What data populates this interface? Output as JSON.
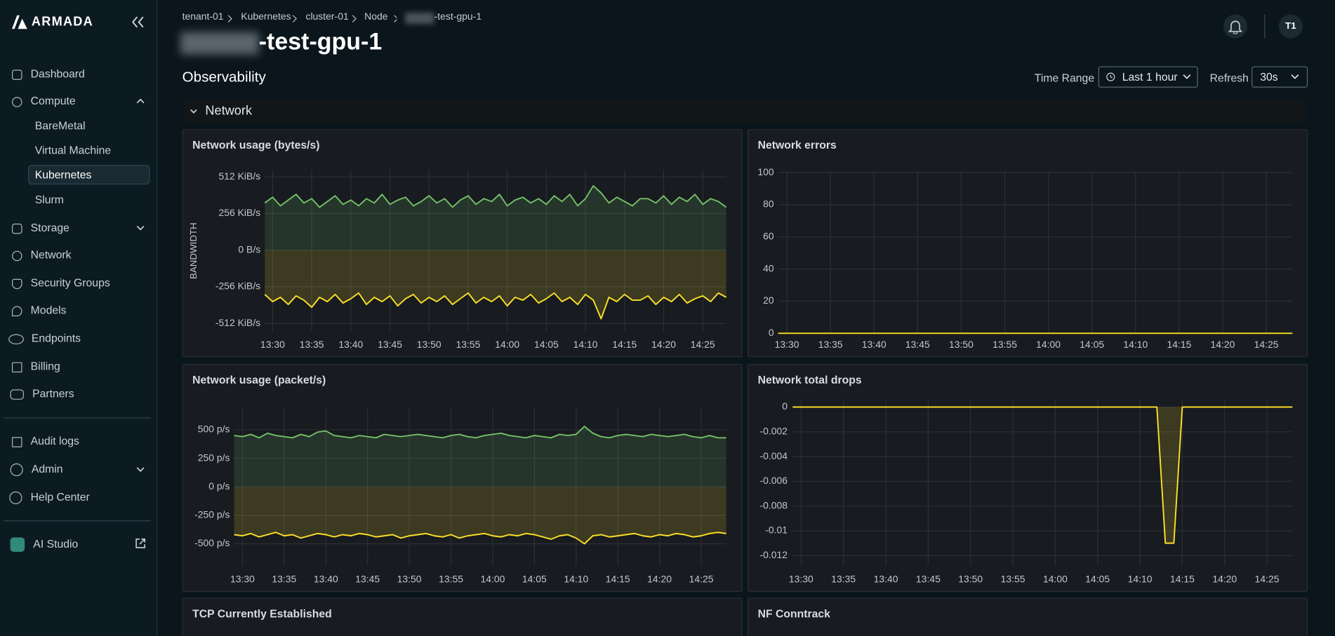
{
  "sidebar": {
    "logo": "ARMADA",
    "nav": [
      {
        "label": "Dashboard"
      },
      {
        "label": "Compute",
        "children": [
          "BareMetal",
          "Virtual Machine",
          "Kubernetes",
          "Slurm"
        ]
      },
      {
        "label": "Storage"
      },
      {
        "label": "Network"
      },
      {
        "label": "Security Groups"
      },
      {
        "label": "Models"
      },
      {
        "label": "Endpoints"
      },
      {
        "label": "Billing"
      },
      {
        "label": "Partners"
      },
      {
        "label": "Audit logs"
      },
      {
        "label": "Admin"
      },
      {
        "label": "Help Center"
      },
      {
        "label": "AI Studio"
      }
    ]
  },
  "header": {
    "breadcrumb": [
      "tenant-01",
      "Kubernetes",
      "cluster-01",
      "Node",
      "-test-gpu-1"
    ],
    "title": "-test-gpu-1",
    "avatar": "T1"
  },
  "toolbar": {
    "heading": "Observability",
    "time_range_label": "Time Range",
    "time_range": "Last 1 hour",
    "refresh_label": "Refresh",
    "refresh": "30s"
  },
  "section": "Network",
  "chart_data": [
    {
      "type": "area",
      "title": "Network usage (bytes/s)",
      "y_label": "BANDWIDTH",
      "grid": true,
      "x": [
        "13:29",
        "13:30",
        "13:31",
        "13:32",
        "13:33",
        "13:34",
        "13:35",
        "13:36",
        "13:37",
        "13:38",
        "13:39",
        "13:40",
        "13:41",
        "13:42",
        "13:43",
        "13:44",
        "13:45",
        "13:46",
        "13:47",
        "13:48",
        "13:49",
        "13:50",
        "13:51",
        "13:52",
        "13:53",
        "13:54",
        "13:55",
        "13:56",
        "13:57",
        "13:58",
        "13:59",
        "14:00",
        "14:01",
        "14:02",
        "14:03",
        "14:04",
        "14:05",
        "14:06",
        "14:07",
        "14:08",
        "14:09",
        "14:10",
        "14:11",
        "14:12",
        "14:13",
        "14:14",
        "14:15",
        "14:16",
        "14:17",
        "14:18",
        "14:19",
        "14:20",
        "14:21",
        "14:22",
        "14:23",
        "14:24",
        "14:25",
        "14:26",
        "14:27",
        "14:28"
      ],
      "xlim": [
        "13:29",
        "14:28"
      ],
      "xticks": [
        "13:30",
        "13:35",
        "13:40",
        "13:45",
        "13:50",
        "13:55",
        "14:00",
        "14:05",
        "14:10",
        "14:15",
        "14:20",
        "14:25"
      ],
      "ylim": [
        -570,
        560
      ],
      "yticks": [
        {
          "value": 512,
          "label": "512 KiB/s"
        },
        {
          "value": 256,
          "label": "256 KiB/s"
        },
        {
          "value": 0,
          "label": "0 B/s"
        },
        {
          "value": -256,
          "label": "-256 KiB/s"
        },
        {
          "value": -512,
          "label": "-512 KiB/s"
        }
      ],
      "series": [
        {
          "color": "#73bf69",
          "values": [
            330,
            370,
            310,
            350,
            390,
            330,
            360,
            300,
            340,
            380,
            320,
            350,
            310,
            360,
            330,
            390,
            320,
            350,
            370,
            310,
            340,
            380,
            330,
            360,
            300,
            350,
            380,
            320,
            360,
            340,
            390,
            310,
            350,
            370,
            330,
            360,
            320,
            380,
            340,
            390,
            310,
            360,
            450,
            400,
            330,
            370,
            340,
            310,
            360,
            360,
            330,
            380,
            320,
            370,
            340,
            390,
            320,
            360,
            340,
            300
          ]
        },
        {
          "color": "#fade2a",
          "values": [
            -310,
            -360,
            -330,
            -380,
            -320,
            -350,
            -400,
            -330,
            -360,
            -310,
            -370,
            -340,
            -300,
            -380,
            -330,
            -360,
            -320,
            -390,
            -340,
            -310,
            -370,
            -330,
            -360,
            -320,
            -380,
            -340,
            -300,
            -370,
            -330,
            -360,
            -320,
            -390,
            -330,
            -350,
            -310,
            -370,
            -340,
            -300,
            -360,
            -330,
            -380,
            -310,
            -350,
            -480,
            -330,
            -360,
            -310,
            -350,
            -350,
            -320,
            -380,
            -330,
            -360,
            -310,
            -370,
            -340,
            -320,
            -360,
            -300,
            -330
          ]
        }
      ]
    },
    {
      "type": "line",
      "title": "Network errors",
      "grid": true,
      "x": [
        "13:29",
        "14:28"
      ],
      "xlim": [
        "13:29",
        "14:28"
      ],
      "xticks": [
        "13:30",
        "13:35",
        "13:40",
        "13:45",
        "13:50",
        "13:55",
        "14:00",
        "14:05",
        "14:10",
        "14:15",
        "14:20",
        "14:25"
      ],
      "ylim": [
        0,
        100
      ],
      "yticks": [
        0,
        20,
        40,
        60,
        80,
        100
      ],
      "series": [
        {
          "color": "#fade2a",
          "values": [
            0,
            0
          ]
        }
      ]
    },
    {
      "type": "area",
      "title": "Network usage (packet/s)",
      "grid": true,
      "x": [
        "13:29",
        "13:30",
        "13:31",
        "13:32",
        "13:33",
        "13:34",
        "13:35",
        "13:36",
        "13:37",
        "13:38",
        "13:39",
        "13:40",
        "13:41",
        "13:42",
        "13:43",
        "13:44",
        "13:45",
        "13:46",
        "13:47",
        "13:48",
        "13:49",
        "13:50",
        "13:51",
        "13:52",
        "13:53",
        "13:54",
        "13:55",
        "13:56",
        "13:57",
        "13:58",
        "13:59",
        "14:00",
        "14:01",
        "14:02",
        "14:03",
        "14:04",
        "14:05",
        "14:06",
        "14:07",
        "14:08",
        "14:09",
        "14:10",
        "14:11",
        "14:12",
        "14:13",
        "14:14",
        "14:15",
        "14:16",
        "14:17",
        "14:18",
        "14:19",
        "14:20",
        "14:21",
        "14:22",
        "14:23",
        "14:24",
        "14:25",
        "14:26",
        "14:27",
        "14:28"
      ],
      "xlim": [
        "13:29",
        "14:28"
      ],
      "xticks": [
        "13:30",
        "13:35",
        "13:40",
        "13:45",
        "13:50",
        "13:55",
        "14:00",
        "14:05",
        "14:10",
        "14:15",
        "14:20",
        "14:25"
      ],
      "ylim": [
        -690,
        690
      ],
      "yticks": [
        {
          "value": 500,
          "label": "500 p/s"
        },
        {
          "value": 250,
          "label": "250 p/s"
        },
        {
          "value": 0,
          "label": "0 p/s"
        },
        {
          "value": -250,
          "label": "-250 p/s"
        },
        {
          "value": -500,
          "label": "-500 p/s"
        }
      ],
      "series": [
        {
          "color": "#73bf69",
          "values": [
            450,
            440,
            460,
            430,
            470,
            450,
            440,
            430,
            460,
            440,
            480,
            490,
            450,
            440,
            430,
            450,
            440,
            430,
            460,
            450,
            440,
            450,
            460,
            450,
            440,
            430,
            450,
            460,
            440,
            430,
            450,
            460,
            470,
            450,
            440,
            430,
            450,
            440,
            430,
            460,
            450,
            460,
            530,
            470,
            440,
            430,
            450,
            460,
            450,
            440,
            460,
            450,
            440,
            450,
            460,
            440,
            430,
            450,
            430,
            430
          ]
        },
        {
          "color": "#fade2a",
          "values": [
            -420,
            -430,
            -410,
            -440,
            -420,
            -400,
            -430,
            -420,
            -450,
            -430,
            -410,
            -420,
            -440,
            -420,
            -430,
            -410,
            -420,
            -440,
            -430,
            -420,
            -450,
            -430,
            -420,
            -410,
            -430,
            -440,
            -420,
            -450,
            -430,
            -420,
            -410,
            -430,
            -440,
            -420,
            -430,
            -410,
            -420,
            -440,
            -460,
            -430,
            -420,
            -450,
            -500,
            -430,
            -420,
            -440,
            -430,
            -420,
            -410,
            -430,
            -440,
            -420,
            -430,
            -410,
            -420,
            -440,
            -430,
            -410,
            -400,
            -410
          ]
        }
      ]
    },
    {
      "type": "area",
      "title": "Network total drops",
      "grid": true,
      "x": [
        "13:29",
        "14:12",
        "14:13",
        "14:14",
        "14:15",
        "14:28"
      ],
      "xlim": [
        "13:29",
        "14:28"
      ],
      "xticks": [
        "13:30",
        "13:35",
        "13:40",
        "13:45",
        "13:50",
        "13:55",
        "14:00",
        "14:05",
        "14:10",
        "14:15",
        "14:20",
        "14:25"
      ],
      "ylim": [
        -0.0128,
        0.0006
      ],
      "yticks": [
        0,
        -0.002,
        -0.004,
        -0.006,
        -0.008,
        -0.01,
        -0.012
      ],
      "series": [
        {
          "color": "#fade2a",
          "values": [
            0,
            0,
            -0.011,
            -0.011,
            0,
            0
          ]
        }
      ]
    }
  ],
  "more_panels": [
    "TCP Currently Established",
    "NF Conntrack"
  ]
}
